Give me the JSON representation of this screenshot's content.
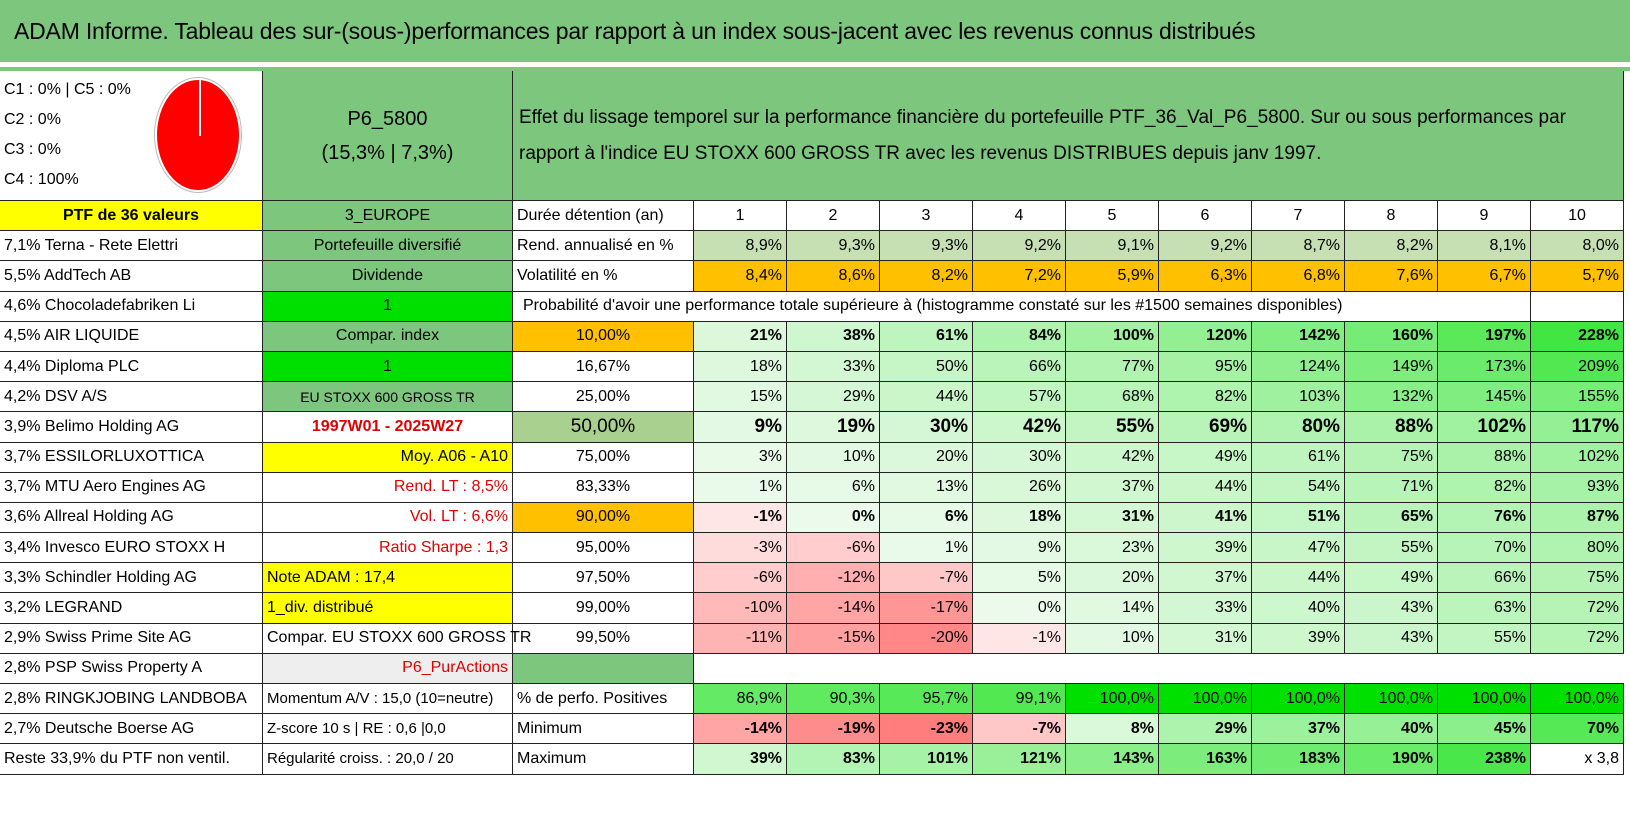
{
  "title": "ADAM Informe. Tableau des sur-(sous-)performances par rapport à un index sous-jacent avec les revenus connus distribués",
  "header": {
    "alloc": [
      "C1 : 0% | C5 : 0%",
      "C2 : 0%",
      "C3 : 0%",
      "C4 : 100%"
    ],
    "pie_colors": {
      "C4": "#ff0000"
    },
    "portfolio_name": "P6_5800",
    "portfolio_perf": "(15,3% | 7,3%)",
    "description": "Effet du lissage temporel sur la performance financière du portefeuille PTF_36_Val_P6_5800. Sur ou sous performances par rapport à l'indice EU STOXX 600 GROSS TR avec les revenus DISTRIBUES depuis janv 1997."
  },
  "left_col": {
    "head": "PTF de 36 valeurs",
    "rows": [
      "7,1% Terna - Rete Elettri",
      "5,5% AddTech AB",
      "4,6% Chocoladefabriken Li",
      "4,5% AIR LIQUIDE",
      "4,4% Diploma PLC",
      "4,2% DSV A/S",
      "3,9% Belimo Holding AG",
      "3,7% ESSILORLUXOTTICA",
      "3,7% MTU Aero Engines AG",
      "3,6% Allreal Holding AG",
      "3,4% Invesco EURO STOXX H",
      "3,3% Schindler Holding AG",
      "3,2% LEGRAND",
      "2,9% Swiss Prime Site AG",
      "2,8% PSP Swiss Property A",
      "2,8% RINGKJOBING LANDBOBA",
      "2,7% Deutsche Boerse AG",
      "Reste 33,9% du PTF non ventil."
    ]
  },
  "mid_col": {
    "head": "3_EUROPE",
    "rows": [
      "Portefeuille diversifié",
      "Dividende",
      "1",
      "Compar. index",
      "1",
      "EU STOXX 600 GROSS TR",
      "1997W01 - 2025W27",
      "Moy. A06 - A10",
      "Rend. LT : 8,5%",
      "Vol. LT : 6,6%",
      "Ratio Sharpe : 1,3",
      "Note ADAM : 17,4",
      "1_div. distribué",
      "Compar. EU STOXX 600 GROSS TR",
      "P6_PurActions",
      "Momentum A/V : 15,0 (10=neutre)",
      "Z-score 10 s | RE : 0,6 |0,0",
      "Régularité croiss. : 20,0 / 20"
    ]
  },
  "table": {
    "duration_label": "Durée détention (an)",
    "years": [
      "1",
      "2",
      "3",
      "4",
      "5",
      "6",
      "7",
      "8",
      "9",
      "10"
    ],
    "rend_label": "Rend. annualisé en %",
    "rend": [
      "8,9%",
      "9,3%",
      "9,3%",
      "9,2%",
      "9,1%",
      "9,2%",
      "8,7%",
      "8,2%",
      "8,1%",
      "8,0%"
    ],
    "vol_label": "Volatilité en %",
    "vol": [
      "8,4%",
      "8,6%",
      "8,2%",
      "7,2%",
      "5,9%",
      "6,3%",
      "6,8%",
      "7,6%",
      "6,7%",
      "5,7%"
    ],
    "prob_text": "Probabilité d'avoir une performance totale supérieure à (histogramme constaté sur les #1500 semaines disponibles)",
    "quantiles": [
      {
        "q": "10,00%",
        "v": [
          "21%",
          "38%",
          "61%",
          "84%",
          "100%",
          "120%",
          "142%",
          "160%",
          "197%",
          "228%"
        ]
      },
      {
        "q": "16,67%",
        "v": [
          "18%",
          "33%",
          "50%",
          "66%",
          "77%",
          "95%",
          "124%",
          "149%",
          "173%",
          "209%"
        ]
      },
      {
        "q": "25,00%",
        "v": [
          "15%",
          "29%",
          "44%",
          "57%",
          "68%",
          "82%",
          "103%",
          "132%",
          "145%",
          "155%"
        ]
      },
      {
        "q": "50,00%",
        "v": [
          "9%",
          "19%",
          "30%",
          "42%",
          "55%",
          "69%",
          "80%",
          "88%",
          "102%",
          "117%"
        ]
      },
      {
        "q": "75,00%",
        "v": [
          "3%",
          "10%",
          "20%",
          "30%",
          "42%",
          "49%",
          "61%",
          "75%",
          "88%",
          "102%"
        ]
      },
      {
        "q": "83,33%",
        "v": [
          "1%",
          "6%",
          "13%",
          "26%",
          "37%",
          "44%",
          "54%",
          "71%",
          "82%",
          "93%"
        ]
      },
      {
        "q": "90,00%",
        "v": [
          "-1%",
          "0%",
          "6%",
          "18%",
          "31%",
          "41%",
          "51%",
          "65%",
          "76%",
          "87%"
        ]
      },
      {
        "q": "95,00%",
        "v": [
          "-3%",
          "-6%",
          "1%",
          "9%",
          "23%",
          "39%",
          "47%",
          "55%",
          "70%",
          "80%"
        ]
      },
      {
        "q": "97,50%",
        "v": [
          "-6%",
          "-12%",
          "-7%",
          "5%",
          "20%",
          "37%",
          "44%",
          "49%",
          "66%",
          "75%"
        ]
      },
      {
        "q": "99,00%",
        "v": [
          "-10%",
          "-14%",
          "-17%",
          "0%",
          "14%",
          "33%",
          "40%",
          "43%",
          "63%",
          "72%"
        ]
      },
      {
        "q": "99,50%",
        "v": [
          "-11%",
          "-15%",
          "-20%",
          "-1%",
          "10%",
          "31%",
          "39%",
          "43%",
          "55%",
          "72%"
        ]
      }
    ],
    "pos_label": "% de perfo. Positives",
    "pos": [
      "86,9%",
      "90,3%",
      "95,7%",
      "99,1%",
      "100,0%",
      "100,0%",
      "100,0%",
      "100,0%",
      "100,0%",
      "100,0%"
    ],
    "min_label": "Minimum",
    "min": [
      "-14%",
      "-19%",
      "-23%",
      "-7%",
      "8%",
      "29%",
      "37%",
      "40%",
      "45%",
      "70%"
    ],
    "max_label": "Maximum",
    "max": [
      "39%",
      "83%",
      "101%",
      "121%",
      "143%",
      "163%",
      "183%",
      "190%",
      "238%"
    ],
    "max_ratio": "x 3,8"
  }
}
